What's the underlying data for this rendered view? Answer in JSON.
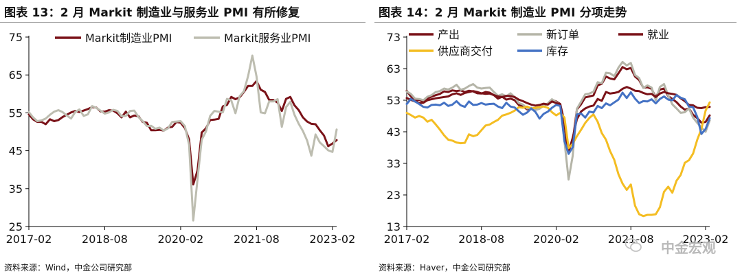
{
  "charts": [
    {
      "title": "图表 13：2 月 Markit 制造业与服务业 PMI 有所修复",
      "source": "资料来源：Wind，中金公司研究部"
    },
    {
      "title": "图表 14：2 月 Markit 制造业 PMI 分项走势",
      "source": "资料来源：Haver，中金公司研究部"
    }
  ],
  "watermark": "中金宏观",
  "chart_data": [
    {
      "type": "line",
      "title": "图表 13：2 月 Markit 制造业与服务业 PMI 有所修复",
      "xlabel": "",
      "ylabel": "",
      "ylim": [
        25,
        75
      ],
      "yticks": [
        25,
        35,
        45,
        55,
        65,
        75
      ],
      "x_start": "2017-02",
      "xtick_labels": [
        {
          "label": "2017-02",
          "index": 0
        },
        {
          "label": "2018-08",
          "index": 18
        },
        {
          "label": "2020-02",
          "index": 36
        },
        {
          "label": "2021-08",
          "index": 54
        },
        {
          "label": "2023-02",
          "index": 72
        }
      ],
      "grid": false,
      "legend": "top",
      "series": [
        {
          "name": "Markit制造业PMI",
          "color": "#7a1218",
          "values": [
            54.6,
            53.3,
            52.6,
            52.6,
            52.0,
            53.3,
            52.8,
            53.1,
            53.9,
            54.5,
            55.1,
            55.5,
            55.2,
            55.6,
            56.0,
            56.5,
            56.4,
            55.4,
            55.3,
            55.7,
            55.6,
            54.9,
            53.8,
            55.3,
            53.8,
            54.3,
            54.1,
            52.6,
            52.4,
            50.4,
            50.4,
            50.5,
            50.3,
            51.1,
            51.3,
            52.6,
            52.4,
            51.0,
            48.0,
            36.1,
            39.8,
            49.8,
            50.9,
            53.1,
            53.2,
            53.4,
            56.7,
            57.1,
            59.2,
            58.6,
            59.1,
            60.5,
            62.1,
            62.1,
            63.4,
            61.1,
            60.5,
            58.4,
            58.4,
            57.7,
            55.5,
            58.7,
            59.2,
            57.0,
            55.7,
            53.8,
            52.7,
            52.1,
            52.0,
            50.4,
            49.0,
            46.2,
            46.9,
            47.8
          ]
        },
        {
          "name": "Markit服务业PMI",
          "color": "#bdbdb0",
          "values": [
            55.2,
            53.8,
            52.8,
            53.0,
            53.5,
            54.5,
            55.3,
            55.7,
            55.2,
            54.3,
            53.5,
            55.2,
            55.9,
            54.2,
            54.6,
            56.8,
            56.3,
            55.6,
            54.8,
            55.1,
            55.8,
            55.5,
            54.1,
            54.2,
            55.5,
            55.6,
            53.9,
            52.8,
            51.5,
            51.6,
            50.8,
            51.1,
            50.3,
            50.9,
            52.6,
            52.7,
            52.8,
            51.5,
            46.6,
            26.6,
            37.5,
            47.9,
            50.1,
            54.2,
            55.5,
            55.3,
            55.1,
            58.7,
            58.3,
            54.9,
            59.4,
            60.7,
            64.7,
            70.1,
            64.6,
            55.1,
            54.9,
            58.0,
            58.0,
            58.6,
            51.3,
            56.5,
            57.9,
            54.5,
            52.1,
            50.2,
            47.7,
            43.7,
            49.3,
            47.2,
            46.2,
            45.1,
            44.7,
            50.6
          ]
        }
      ]
    },
    {
      "type": "line",
      "title": "图表 14：2 月 Markit 制造业 PMI 分项走势",
      "xlabel": "",
      "ylabel": "",
      "ylim": [
        13,
        73
      ],
      "yticks": [
        13,
        23,
        33,
        43,
        53,
        63,
        73
      ],
      "x_start": "2017-02",
      "xtick_labels": [
        {
          "label": "2017-02",
          "index": 0
        },
        {
          "label": "2018-08",
          "index": 18
        },
        {
          "label": "2020-02",
          "index": 36
        },
        {
          "label": "2021-08",
          "index": 54
        },
        {
          "label": "2023-02",
          "index": 72
        }
      ],
      "grid": false,
      "legend": "top",
      "series": [
        {
          "name": "产出",
          "color": "#7a1218",
          "values": [
            56.0,
            54.2,
            52.8,
            53.1,
            52.6,
            53.6,
            54.1,
            54.6,
            55.0,
            55.8,
            55.6,
            56.1,
            55.9,
            56.1,
            55.6,
            56.0,
            55.8,
            55.2,
            55.1,
            55.6,
            55.4,
            54.6,
            53.5,
            54.1,
            53.2,
            53.5,
            53.0,
            51.5,
            51.1,
            50.1,
            50.3,
            50.0,
            50.4,
            51.3,
            51.9,
            53.1,
            52.6,
            51.8,
            42.2,
            37.6,
            39.9,
            50.1,
            51.7,
            53.9,
            54.2,
            54.5,
            57.7,
            58.2,
            60.5,
            59.9,
            59.6,
            61.5,
            63.5,
            62.8,
            63.2,
            60.5,
            59.4,
            57.0,
            57.1,
            56.6,
            53.9,
            56.4,
            56.7,
            54.3,
            53.4,
            52.4,
            51.0,
            50.0,
            50.4,
            48.4,
            47.3,
            45.9,
            46.1,
            48.2
          ]
        },
        {
          "name": "新订单",
          "color": "#b5b5a8",
          "values": [
            55.8,
            55.0,
            53.5,
            53.4,
            53.0,
            54.1,
            54.6,
            55.6,
            55.9,
            56.7,
            56.4,
            57.0,
            57.9,
            56.3,
            56.7,
            57.5,
            58.1,
            57.0,
            56.7,
            56.9,
            57.0,
            55.6,
            54.4,
            54.9,
            54.2,
            55.2,
            54.0,
            52.1,
            51.6,
            50.4,
            50.6,
            49.9,
            50.3,
            51.3,
            52.0,
            53.3,
            52.4,
            51.5,
            40.0,
            27.9,
            35.4,
            50.3,
            52.5,
            54.9,
            55.1,
            55.7,
            58.7,
            58.4,
            61.7,
            61.5,
            60.6,
            63.3,
            65.1,
            64.0,
            64.8,
            61.0,
            60.0,
            56.9,
            57.7,
            57.0,
            53.0,
            57.2,
            58.1,
            54.5,
            51.7,
            50.4,
            49.0,
            49.2,
            50.4,
            47.5,
            45.8,
            44.4,
            43.0,
            46.6
          ]
        },
        {
          "name": "就业",
          "color": "#7a1218",
          "values": [
            53.7,
            53.1,
            52.6,
            52.1,
            52.2,
            53.0,
            53.3,
            53.6,
            53.8,
            54.0,
            54.2,
            54.9,
            55.2,
            54.7,
            55.3,
            55.6,
            55.9,
            55.6,
            55.2,
            55.0,
            55.1,
            54.6,
            54.2,
            54.0,
            54.4,
            54.3,
            54.0,
            53.2,
            52.7,
            52.1,
            51.6,
            51.3,
            51.5,
            51.9,
            51.6,
            52.6,
            52.1,
            51.7,
            46.1,
            36.6,
            41.1,
            47.0,
            49.4,
            50.4,
            51.0,
            51.3,
            53.4,
            52.8,
            55.6,
            55.1,
            55.3,
            55.6,
            56.6,
            57.2,
            56.7,
            56.0,
            55.9,
            55.3,
            54.9,
            55.0,
            54.0,
            55.1,
            55.6,
            55.2,
            55.0,
            54.7,
            53.6,
            52.7,
            51.5,
            51.4,
            50.6,
            50.5,
            50.8,
            50.9
          ]
        },
        {
          "name": "供应商交付",
          "color": "#f4bd22",
          "values": [
            49.0,
            48.3,
            47.5,
            48.0,
            47.5,
            46.2,
            46.8,
            45.3,
            43.7,
            41.9,
            40.5,
            40.2,
            39.6,
            39.4,
            39.5,
            42.2,
            41.6,
            42.0,
            43.5,
            45.0,
            45.3,
            46.1,
            46.8,
            48.1,
            48.5,
            49.0,
            49.7,
            50.8,
            50.6,
            51.0,
            50.4,
            50.6,
            50.8,
            51.0,
            50.6,
            49.2,
            48.2,
            49.0,
            47.5,
            37.8,
            39.2,
            41.6,
            43.6,
            45.8,
            47.4,
            48.5,
            46.2,
            42.6,
            40.5,
            36.9,
            34.1,
            29.6,
            26.6,
            24.6,
            26.3,
            19.6,
            16.9,
            16.3,
            16.7,
            16.7,
            16.9,
            19.1,
            24.0,
            25.6,
            23.7,
            27.5,
            29.3,
            33.2,
            34.0,
            36.1,
            40.5,
            43.9,
            49.7,
            52.3
          ]
        },
        {
          "name": "库存",
          "color": "#4472c4",
          "values": [
            51.8,
            53.4,
            52.6,
            51.8,
            50.9,
            50.7,
            51.5,
            51.6,
            51.4,
            52.2,
            51.2,
            51.6,
            52.7,
            51.4,
            50.9,
            52.6,
            51.5,
            51.6,
            52.1,
            51.6,
            51.8,
            51.9,
            51.0,
            50.5,
            52.2,
            51.0,
            50.7,
            49.5,
            48.4,
            49.1,
            50.4,
            49.3,
            47.2,
            48.7,
            49.4,
            50.6,
            51.5,
            51.2,
            40.0,
            36.0,
            38.1,
            48.5,
            48.8,
            47.5,
            49.4,
            49.1,
            51.2,
            50.5,
            52.0,
            51.4,
            52.3,
            53.2,
            55.4,
            53.7,
            55.5,
            53.5,
            52.1,
            52.7,
            52.6,
            53.3,
            52.0,
            53.4,
            54.2,
            53.2,
            53.0,
            54.6,
            53.8,
            53.3,
            51.0,
            50.8,
            47.7,
            42.3,
            43.9,
            47.3
          ]
        }
      ]
    }
  ]
}
